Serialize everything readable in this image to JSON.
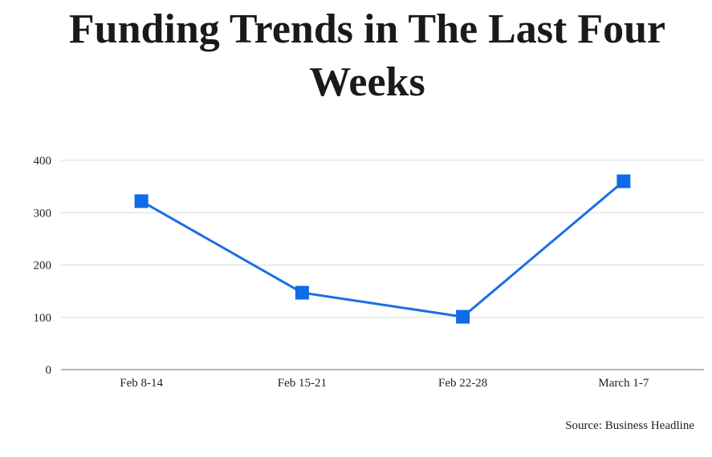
{
  "chart_data": {
    "type": "line",
    "title": "Funding Trends in The Last Four Weeks",
    "categories": [
      "Feb 8-14",
      "Feb 15-21",
      "Feb 22-28",
      "March 1-7"
    ],
    "series": [
      {
        "values": [
          322,
          147,
          101,
          360
        ]
      }
    ],
    "y_ticks": [
      0,
      100,
      200,
      300,
      400
    ],
    "ylim": [
      0,
      400
    ],
    "xlabel": "",
    "ylabel": "",
    "grid": true,
    "marker": "square",
    "colors": {
      "line": "#1a6fe3",
      "marker": "#0f6be8",
      "grid": "#dcdcdc",
      "axis": "#888888"
    }
  },
  "source": "Source: Business Headline"
}
